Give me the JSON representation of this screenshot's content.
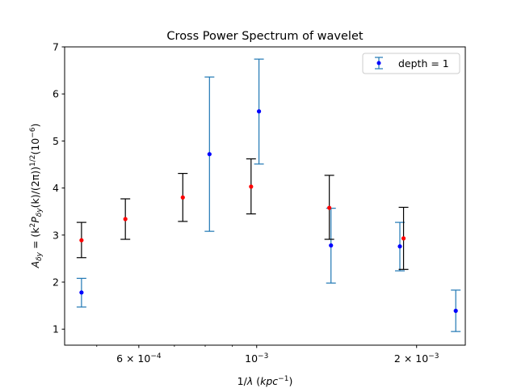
{
  "chart_data": {
    "type": "scatter",
    "title": "Cross Power Spectrum of wavelet",
    "xlabel": {
      "prefix": "1/",
      "lambda": "λ",
      "mid": " (",
      "unit": "kpc",
      "sup": "−1",
      "suffix": ")"
    },
    "ylabel": {
      "A": "A",
      "A_sub": "δy",
      "eq": " = (k",
      "k_sup": "2",
      "P": "P",
      "P_sub": "δy",
      "rest": "(k)/(2π))",
      "rest_sup": "1/2",
      "tail": "(10",
      "tail_sup": "−6",
      "close": ")"
    },
    "xscale": "log",
    "xlim": [
      0.000435,
      0.00247
    ],
    "ylim": [
      0.66,
      7.0
    ],
    "yticks": [
      1,
      2,
      3,
      4,
      5,
      6,
      7
    ],
    "xticks": [
      {
        "value": 0.0006,
        "mantissa": "6 × 10",
        "exp": "−4"
      },
      {
        "value": 0.001,
        "mantissa": "10",
        "exp": "−3"
      },
      {
        "value": 0.002,
        "mantissa": "2 × 10",
        "exp": "−3"
      }
    ],
    "minor_xticks": [
      0.0005,
      0.0007,
      0.0008,
      0.0009,
      0.003
    ],
    "legend": {
      "position": "top-right"
    },
    "series": [
      {
        "name": "depth = 1",
        "marker_color": "#0000ff",
        "errorbar_color": "#1f77b4",
        "points": [
          {
            "x": 0.000468,
            "y": 1.78,
            "ylow": 1.47,
            "yhigh": 2.08
          },
          {
            "x": 0.000815,
            "y": 4.72,
            "ylow": 3.08,
            "yhigh": 6.36
          },
          {
            "x": 0.00101,
            "y": 5.63,
            "ylow": 4.51,
            "yhigh": 6.74
          },
          {
            "x": 0.00138,
            "y": 2.78,
            "ylow": 1.98,
            "yhigh": 3.57
          },
          {
            "x": 0.00186,
            "y": 2.76,
            "ylow": 2.24,
            "yhigh": 3.27
          },
          {
            "x": 0.00237,
            "y": 1.39,
            "ylow": 0.95,
            "yhigh": 1.83
          }
        ]
      },
      {
        "marker_color": "#ff0000",
        "errorbar_color": "#000000",
        "points": [
          {
            "x": 0.000468,
            "y": 2.89,
            "ylow": 2.52,
            "yhigh": 3.27
          },
          {
            "x": 0.000566,
            "y": 3.34,
            "ylow": 2.91,
            "yhigh": 3.77
          },
          {
            "x": 0.000726,
            "y": 3.8,
            "ylow": 3.29,
            "yhigh": 4.31
          },
          {
            "x": 0.000976,
            "y": 4.03,
            "ylow": 3.45,
            "yhigh": 4.62
          },
          {
            "x": 0.00137,
            "y": 3.58,
            "ylow": 2.91,
            "yhigh": 4.27
          },
          {
            "x": 0.00189,
            "y": 2.93,
            "ylow": 2.27,
            "yhigh": 3.59
          }
        ]
      }
    ]
  }
}
